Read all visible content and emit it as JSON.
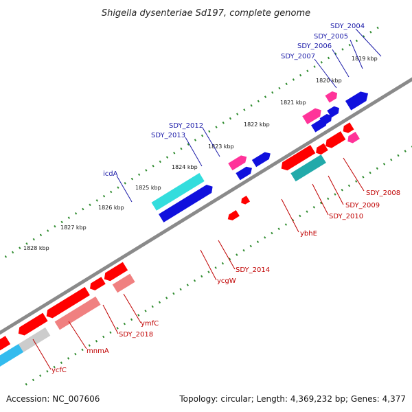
{
  "title": "Shigella dysenteriae Sd197, complete genome",
  "accession_text": "Accession: NC_007606",
  "summary_text": "Topology: circular; Length: 4,369,232 bp; Genes: 4,377",
  "colors": {
    "backbone": "#8a8a8a",
    "ticks": "#2e8b2e",
    "label_blue": "#1a1aa8",
    "label_red": "#c00000",
    "feature_red": "#ff0000",
    "feature_pink": "#ff3399",
    "feature_blue": "#1010dd",
    "feature_cyan": "#33dddd",
    "feature_teal": "#22aaaa",
    "feature_salmon": "#f08080",
    "feature_gray": "#cccccc"
  },
  "kbp_ticks": [
    "1819 kbp",
    "1820 kbp",
    "1821 kbp",
    "1822 kbp",
    "1823 kbp",
    "1824 kbp",
    "1825 kbp",
    "1826 kbp",
    "1827 kbp",
    "1828 kbp"
  ],
  "gene_labels_upper": [
    "SDY_2004",
    "SDY_2005",
    "SDY_2006",
    "SDY_2007",
    "SDY_2012",
    "SDY_2013",
    "icdA"
  ],
  "gene_labels_lower": [
    "SDY_2008",
    "SDY_2009",
    "SDY_2010",
    "ybhE",
    "SDY_2014",
    "ycgW",
    "ymfC",
    "SDY_2018",
    "mnmA",
    "ycfC"
  ]
}
